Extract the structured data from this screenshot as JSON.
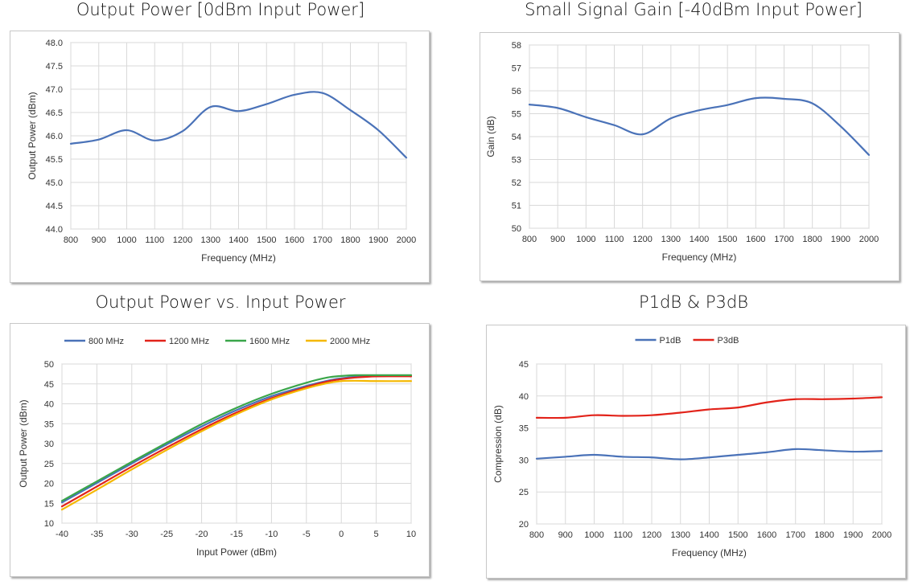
{
  "colors": {
    "blue": "#4a72b8",
    "red": "#e2231a",
    "green": "#3aa64a",
    "yellow": "#f5b800",
    "grid": "#d9d9d9",
    "axis": "#bfbfbf"
  },
  "chart_data": [
    {
      "type": "line",
      "title": "Output Power [0dBm Input Power]",
      "xlabel": "Frequency (MHz)",
      "ylabel": "Output Power (dBm)",
      "xlim": [
        800,
        2000
      ],
      "ylim": [
        44.0,
        48.0
      ],
      "xticks": [
        "800",
        "900",
        "1000",
        "1100",
        "1200",
        "1300",
        "1400",
        "1500",
        "1600",
        "1700",
        "1800",
        "1900",
        "2000"
      ],
      "yticks": [
        "44.0",
        "44.5",
        "45.0",
        "45.5",
        "46.0",
        "46.5",
        "47.0",
        "47.5",
        "48.0"
      ],
      "legend": [],
      "series": [
        {
          "name": "Output Power",
          "color": "#4a72b8",
          "x": [
            800,
            900,
            1000,
            1100,
            1200,
            1300,
            1400,
            1500,
            1600,
            1700,
            1800,
            1900,
            2000
          ],
          "y": [
            45.83,
            45.92,
            46.12,
            45.9,
            46.1,
            46.62,
            46.53,
            46.68,
            46.88,
            46.92,
            46.55,
            46.12,
            45.53
          ]
        }
      ]
    },
    {
      "type": "line",
      "title": "Small Signal Gain [-40dBm Input Power]",
      "xlabel": "Frequency (MHz)",
      "ylabel": "Gain (dB)",
      "xlim": [
        800,
        2000
      ],
      "ylim": [
        50,
        58
      ],
      "xticks": [
        "800",
        "900",
        "1000",
        "1100",
        "1200",
        "1300",
        "1400",
        "1500",
        "1600",
        "1700",
        "1800",
        "1900",
        "2000"
      ],
      "yticks": [
        "50",
        "51",
        "52",
        "53",
        "54",
        "55",
        "56",
        "57",
        "58"
      ],
      "legend": [],
      "series": [
        {
          "name": "Gain",
          "color": "#4a72b8",
          "x": [
            800,
            900,
            1000,
            1100,
            1200,
            1300,
            1400,
            1500,
            1600,
            1700,
            1800,
            1900,
            2000
          ],
          "y": [
            55.4,
            55.25,
            54.85,
            54.5,
            54.1,
            54.8,
            55.15,
            55.38,
            55.68,
            55.65,
            55.45,
            54.45,
            53.2
          ]
        }
      ]
    },
    {
      "type": "line",
      "title": "Output Power vs. Input Power",
      "xlabel": "Input Power (dBm)",
      "ylabel": "Output Power (dBm)",
      "xlim": [
        -40,
        10
      ],
      "ylim": [
        10,
        50
      ],
      "xticks": [
        "-40",
        "-35",
        "-30",
        "-25",
        "-20",
        "-15",
        "-10",
        "-5",
        "0",
        "5",
        "10"
      ],
      "yticks": [
        "10",
        "15",
        "20",
        "25",
        "30",
        "35",
        "40",
        "45",
        "50"
      ],
      "legend": [
        "800 MHz",
        "1200 MHz",
        "1600 MHz",
        "2000 MHz"
      ],
      "series": [
        {
          "name": "800 MHz",
          "color": "#4a72b8",
          "x": [
            -40,
            -35,
            -30,
            -25,
            -20,
            -15,
            -10,
            -5,
            -2,
            0,
            2,
            5,
            10
          ],
          "y": [
            15.2,
            20.1,
            25.0,
            29.8,
            34.3,
            38.4,
            41.9,
            44.5,
            45.8,
            46.4,
            46.8,
            47.0,
            47.0
          ]
        },
        {
          "name": "1200 MHz",
          "color": "#e2231a",
          "x": [
            -40,
            -35,
            -30,
            -25,
            -20,
            -15,
            -10,
            -5,
            -2,
            0,
            2,
            5,
            10
          ],
          "y": [
            14.2,
            19.2,
            24.2,
            29.0,
            33.6,
            37.8,
            41.4,
            44.2,
            45.6,
            46.2,
            46.6,
            46.9,
            46.9
          ]
        },
        {
          "name": "1600 MHz",
          "color": "#3aa64a",
          "x": [
            -40,
            -35,
            -30,
            -25,
            -20,
            -15,
            -10,
            -5,
            -2,
            0,
            2,
            5,
            10
          ],
          "y": [
            15.6,
            20.5,
            25.4,
            30.2,
            34.9,
            39.0,
            42.5,
            45.3,
            46.6,
            47.0,
            47.2,
            47.2,
            47.2
          ]
        },
        {
          "name": "2000 MHz",
          "color": "#f5b800",
          "x": [
            -40,
            -35,
            -30,
            -25,
            -20,
            -15,
            -10,
            -5,
            -2,
            0,
            2,
            5,
            10
          ],
          "y": [
            13.4,
            18.4,
            23.5,
            28.4,
            33.1,
            37.4,
            41.1,
            43.9,
            45.2,
            45.7,
            45.8,
            45.7,
            45.7
          ]
        }
      ]
    },
    {
      "type": "line",
      "title": "P1dB & P3dB",
      "xlabel": "Frequency (MHz)",
      "ylabel": "Compression (dB)",
      "xlim": [
        800,
        2000
      ],
      "ylim": [
        20,
        45
      ],
      "xticks": [
        "800",
        "900",
        "1000",
        "1100",
        "1200",
        "1300",
        "1400",
        "1500",
        "1600",
        "1700",
        "1800",
        "1900",
        "2000"
      ],
      "yticks": [
        "20",
        "25",
        "30",
        "35",
        "40",
        "45"
      ],
      "legend": [
        "P1dB",
        "P3dB"
      ],
      "series": [
        {
          "name": "P1dB",
          "color": "#4a72b8",
          "x": [
            800,
            900,
            1000,
            1100,
            1200,
            1300,
            1400,
            1500,
            1600,
            1700,
            1800,
            1900,
            2000
          ],
          "y": [
            30.2,
            30.5,
            30.8,
            30.5,
            30.4,
            30.1,
            30.4,
            30.8,
            31.2,
            31.7,
            31.5,
            31.3,
            31.4
          ]
        },
        {
          "name": "P3dB",
          "color": "#e2231a",
          "x": [
            800,
            900,
            1000,
            1100,
            1200,
            1300,
            1400,
            1500,
            1600,
            1700,
            1800,
            1900,
            2000
          ],
          "y": [
            36.6,
            36.6,
            37.0,
            36.9,
            37.0,
            37.4,
            37.9,
            38.2,
            39.0,
            39.5,
            39.5,
            39.6,
            39.8
          ]
        }
      ]
    }
  ]
}
